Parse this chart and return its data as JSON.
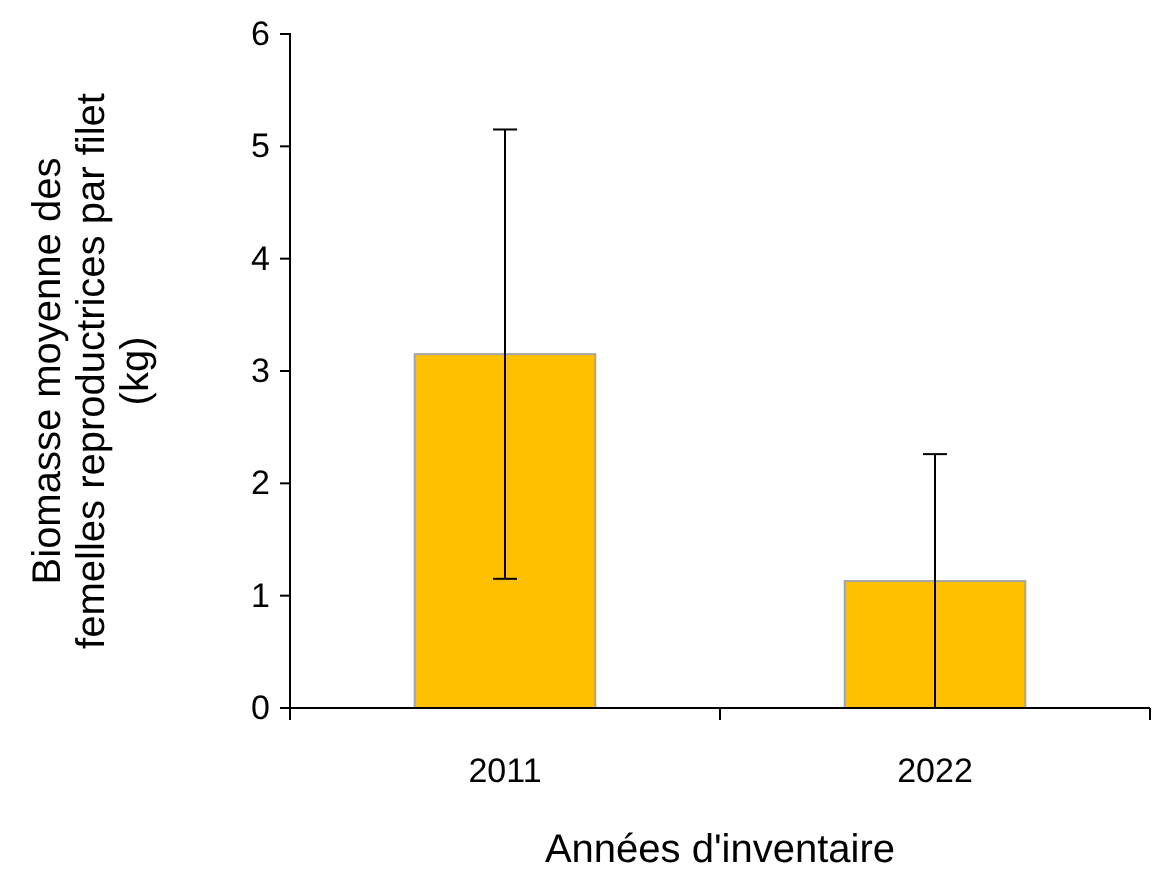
{
  "chart_data": {
    "type": "bar",
    "categories": [
      "2011",
      "2022"
    ],
    "values": [
      3.15,
      1.13
    ],
    "errors": [
      2.0,
      1.13
    ],
    "color": "#ffc000",
    "ylim": [
      0,
      6
    ],
    "yticks": [
      0,
      1,
      2,
      3,
      4,
      5,
      6
    ],
    "grid": false,
    "xlabel": "Années d'inventaire",
    "ylabel": "Biomasse moyenne des femelles reproductrices par filet (kg)"
  }
}
